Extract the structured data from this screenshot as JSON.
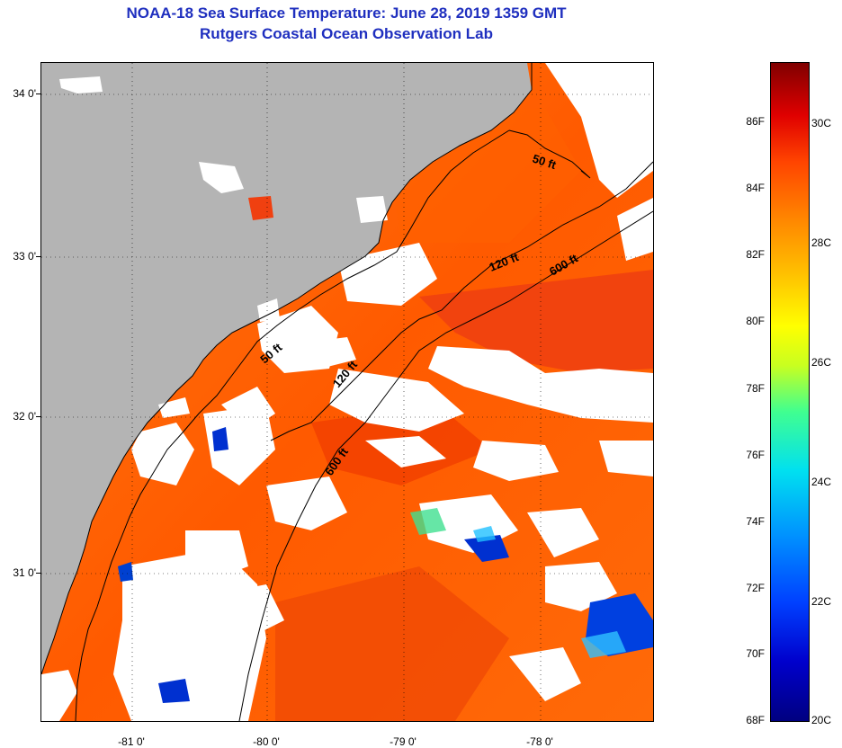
{
  "title": {
    "line1": "NOAA-18 Sea Surface Temperature:  June 28, 2019 1359 GMT",
    "line2": "Rutgers Coastal Ocean Observation Lab"
  },
  "map": {
    "lat_labels": [
      "34 0'",
      "33 0'",
      "32 0'",
      "31 0'"
    ],
    "lon_labels": [
      "-81 0'",
      "-80 0'",
      "-79 0'",
      "-78 0'"
    ],
    "contour_labels": {
      "ft50_north": "50 ft",
      "ft120_north": "120 ft",
      "ft600_north": "600 ft",
      "ft50_south": "50 ft",
      "ft120_south": "120 ft",
      "ft600_south": "600 ft"
    },
    "colors": {
      "land": "#b4b4b4",
      "cloud": "#ffffff",
      "sst_warm": "#ff6a00",
      "sst_hot": "#f03000",
      "sst_cool": "#0030d0"
    }
  },
  "colorbar": {
    "fahrenheit": [
      "86F",
      "84F",
      "82F",
      "80F",
      "78F",
      "76F",
      "74F",
      "72F",
      "70F",
      "68F"
    ],
    "celsius": [
      "30C",
      "28C",
      "26C",
      "24C",
      "22C",
      "20C"
    ]
  }
}
